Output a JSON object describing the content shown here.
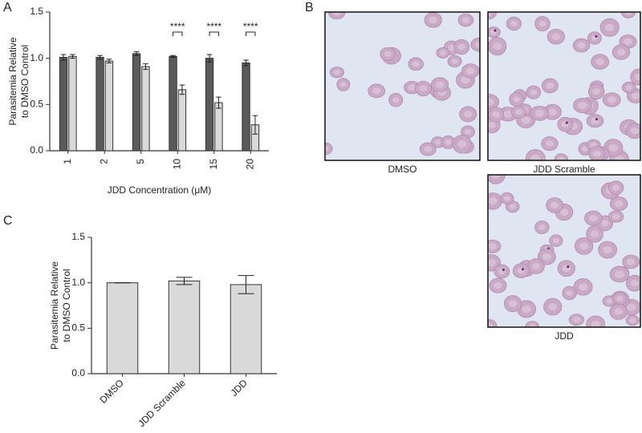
{
  "chart_data": [
    {
      "type": "bar",
      "panel": "A",
      "categories": [
        "1",
        "2",
        "5",
        "10",
        "15",
        "20"
      ],
      "series": [
        {
          "color": "#5a5a5a",
          "values": [
            1.01,
            1.01,
            1.05,
            1.02,
            1.0,
            0.95
          ],
          "errors": [
            0.03,
            0.02,
            0.02,
            0.01,
            0.04,
            0.03
          ]
        },
        {
          "color": "#d9d9d9",
          "values": [
            1.02,
            0.97,
            0.91,
            0.66,
            0.52,
            0.28
          ],
          "errors": [
            0.02,
            0.02,
            0.03,
            0.05,
            0.06,
            0.1
          ]
        }
      ],
      "annotations": [
        null,
        null,
        null,
        "****",
        "****",
        "****"
      ],
      "y_label": [
        "Parasitemia Relative",
        "to DMSO Control"
      ],
      "x_label": "JDD Concentration (μM)",
      "ylim": [
        0,
        1.5
      ],
      "yticks": [
        {
          "value": 0,
          "label": "0.0"
        },
        {
          "value": 0.5,
          "label": "0.5"
        },
        {
          "value": 1,
          "label": "1.0"
        },
        {
          "value": 1.5,
          "label": "1.5"
        }
      ]
    },
    {
      "type": "bar",
      "panel": "C",
      "categories": [
        "DMSO",
        "JDD Scramble",
        "JDD"
      ],
      "series": [
        {
          "color": "#d9d9d9",
          "values": [
            1.0,
            1.02,
            0.98
          ],
          "errors": [
            0,
            0.04,
            0.1
          ]
        }
      ],
      "y_label": [
        "Parasitemia Relative",
        "to DMSO Control"
      ],
      "ylim": [
        0,
        1.5
      ],
      "yticks": [
        {
          "value": 0,
          "label": "0.0"
        },
        {
          "value": 0.5,
          "label": "0.5"
        },
        {
          "value": 1,
          "label": "1.0"
        },
        {
          "value": 1.5,
          "label": "1.5"
        }
      ]
    }
  ],
  "micrographs": {
    "panel": "B",
    "labels": [
      "DMSO",
      "JDD Scramble",
      "JDD"
    ]
  }
}
